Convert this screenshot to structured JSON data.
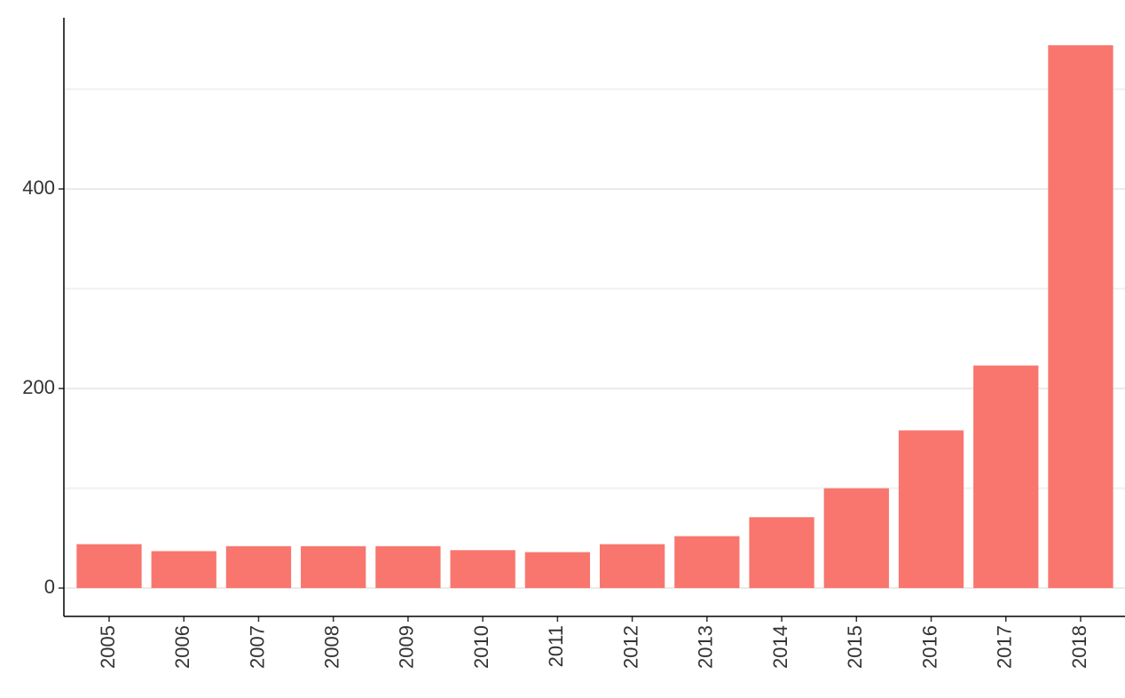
{
  "chart_data": {
    "type": "bar",
    "categories": [
      "2005",
      "2006",
      "2007",
      "2008",
      "2009",
      "2010",
      "2011",
      "2012",
      "2013",
      "2014",
      "2015",
      "2016",
      "2017",
      "2018"
    ],
    "values": [
      44,
      37,
      42,
      42,
      42,
      38,
      36,
      44,
      52,
      71,
      100,
      158,
      223,
      544
    ],
    "color": "#F8766D",
    "ylim": [
      -28.4,
      571.6
    ],
    "yticks": [
      0,
      200,
      400
    ],
    "minor_yticks": [
      100,
      300,
      500
    ],
    "grid": true
  }
}
